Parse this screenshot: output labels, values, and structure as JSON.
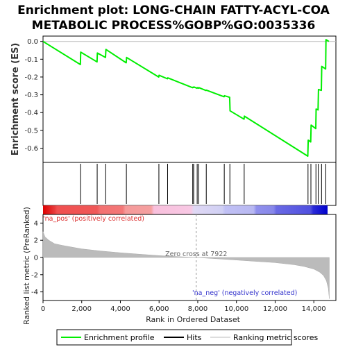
{
  "title_line1": "Enrichment plot: LONG-CHAIN FATTY-ACYL-COA",
  "title_line2": "METABOLIC PROCESS%GOBP%GO:0035336",
  "colors": {
    "es_line": "#00ee00",
    "hits": "#000000",
    "metric_fill": "#bbbbbb",
    "pos_label": "#dd3333",
    "neg_label": "#3333cc",
    "zero_line": "#999999"
  },
  "chart_data": {
    "type": "line",
    "xlabel": "Rank in Ordered Dataset",
    "x_ticks": [
      "0",
      "2,000",
      "4,000",
      "6,000",
      "8,000",
      "10,000",
      "12,000",
      "14,000"
    ],
    "x_tick_values": [
      0,
      2000,
      4000,
      6000,
      8000,
      10000,
      12000,
      14000
    ],
    "xlim": [
      0,
      15000
    ],
    "es_panel": {
      "ylabel": "Enrichment score (ES)",
      "ylim": [
        -0.68,
        0.03
      ],
      "y_ticks": [
        "0.0",
        "-0.1",
        "-0.2",
        "-0.3",
        "-0.4",
        "-0.5",
        "-0.6"
      ],
      "y_tick_values": [
        0.0,
        -0.1,
        -0.2,
        -0.3,
        -0.4,
        -0.5,
        -0.6
      ],
      "series": [
        {
          "name": "Enrichment profile",
          "x": [
            0,
            1930,
            1950,
            2790,
            2810,
            3230,
            3250,
            4300,
            4320,
            5980,
            6000,
            6430,
            6450,
            7730,
            7750,
            7780,
            7800,
            7960,
            7980,
            8040,
            8060,
            8430,
            8450,
            9360,
            9380,
            9650,
            9670,
            10390,
            10410,
            13690,
            13710,
            13840,
            13860,
            14100,
            14120,
            14220,
            14240,
            14390,
            14410,
            14610,
            14630,
            14780
          ],
          "y": [
            0.0,
            -0.13,
            -0.06,
            -0.115,
            -0.065,
            -0.09,
            -0.045,
            -0.12,
            -0.09,
            -0.2,
            -0.19,
            -0.21,
            -0.205,
            -0.26,
            -0.257,
            -0.259,
            -0.256,
            -0.263,
            -0.26,
            -0.263,
            -0.26,
            -0.276,
            -0.274,
            -0.311,
            -0.305,
            -0.314,
            -0.39,
            -0.437,
            -0.42,
            -0.645,
            -0.555,
            -0.565,
            -0.47,
            -0.49,
            -0.38,
            -0.385,
            -0.27,
            -0.275,
            -0.14,
            -0.155,
            0.01,
            0.0
          ]
        }
      ]
    },
    "hits": {
      "name": "Hits",
      "x": [
        1940,
        2800,
        3240,
        4310,
        5990,
        6440,
        7740,
        7790,
        7970,
        8050,
        8440,
        9370,
        9660,
        10400,
        13700,
        13850,
        14110,
        14230,
        14400,
        14620
      ]
    },
    "metric_panel": {
      "name": "Ranking metric scores",
      "ylabel": "Ranked list metric (PreRanked)",
      "ylim": [
        -5,
        5
      ],
      "y_ticks": [
        "4",
        "2",
        "0",
        "-2",
        "-4"
      ],
      "y_tick_values": [
        4,
        2,
        0,
        -2,
        -4
      ],
      "x": [
        0,
        100,
        300,
        600,
        1000,
        2000,
        3000,
        4000,
        5000,
        6000,
        7000,
        7922,
        9000,
        10000,
        11000,
        12000,
        13000,
        13500,
        14000,
        14300,
        14500,
        14650,
        14750,
        14800
      ],
      "y": [
        3.0,
        2.4,
        2.0,
        1.6,
        1.4,
        1.0,
        0.75,
        0.55,
        0.38,
        0.22,
        0.1,
        0.0,
        -0.15,
        -0.3,
        -0.45,
        -0.6,
        -0.85,
        -1.05,
        -1.35,
        -1.7,
        -2.1,
        -2.7,
        -3.6,
        -4.8
      ]
    },
    "zero_cross_label": "Zero cross at 7922",
    "zero_cross_rank": 7922,
    "pos_label": "'na_pos' (positively correlated)",
    "neg_label": "'na_neg' (negatively correlated)",
    "legend": [
      "Enrichment profile",
      "Hits",
      "Ranking metric scores"
    ]
  }
}
